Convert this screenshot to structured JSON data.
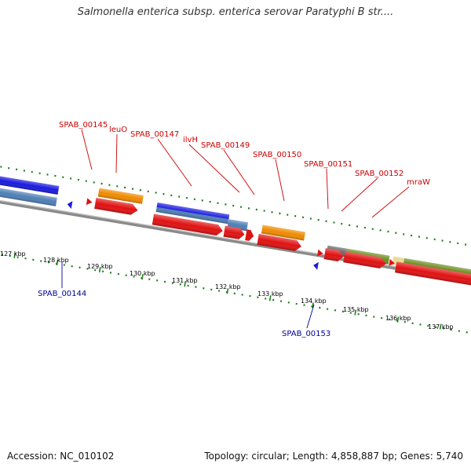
{
  "title": "Salmonella enterica subsp. enterica serovar Paratyphi B str....",
  "footer": {
    "accession": "Accession: NC_010102",
    "stats": "Topology: circular; Length: 4,858,887 bp; Genes: 5,740"
  },
  "colors": {
    "cds_red": "#e11111",
    "gene_orange": "#f08a00",
    "gene_blue": "#1a1adf",
    "gene_steel": "#4f7fb6",
    "gene_olive": "#6e8f22",
    "gene_grey": "#6a6a6a",
    "gene_pale": "#e8dc9a",
    "backbone": "#8a8a8a",
    "gc_dots": "#1f7f1f",
    "label_forward": "#cc0000",
    "label_reverse": "#000099"
  },
  "ticks": [
    "127 kbp",
    "128 kbp",
    "129 kbp",
    "130 kbp",
    "131 kbp",
    "132 kbp",
    "133 kbp",
    "134 kbp",
    "135 kbp",
    "136 kbp",
    "137 kbp"
  ],
  "forward_labels": [
    "SPAB_00145",
    "leuO",
    "SPAB_00147",
    "ilvH",
    "SPAB_00149",
    "SPAB_00150",
    "SPAB_00151",
    "SPAB_00152",
    "mraW"
  ],
  "reverse_labels": [
    "SPAB_00144",
    "SPAB_00153"
  ]
}
